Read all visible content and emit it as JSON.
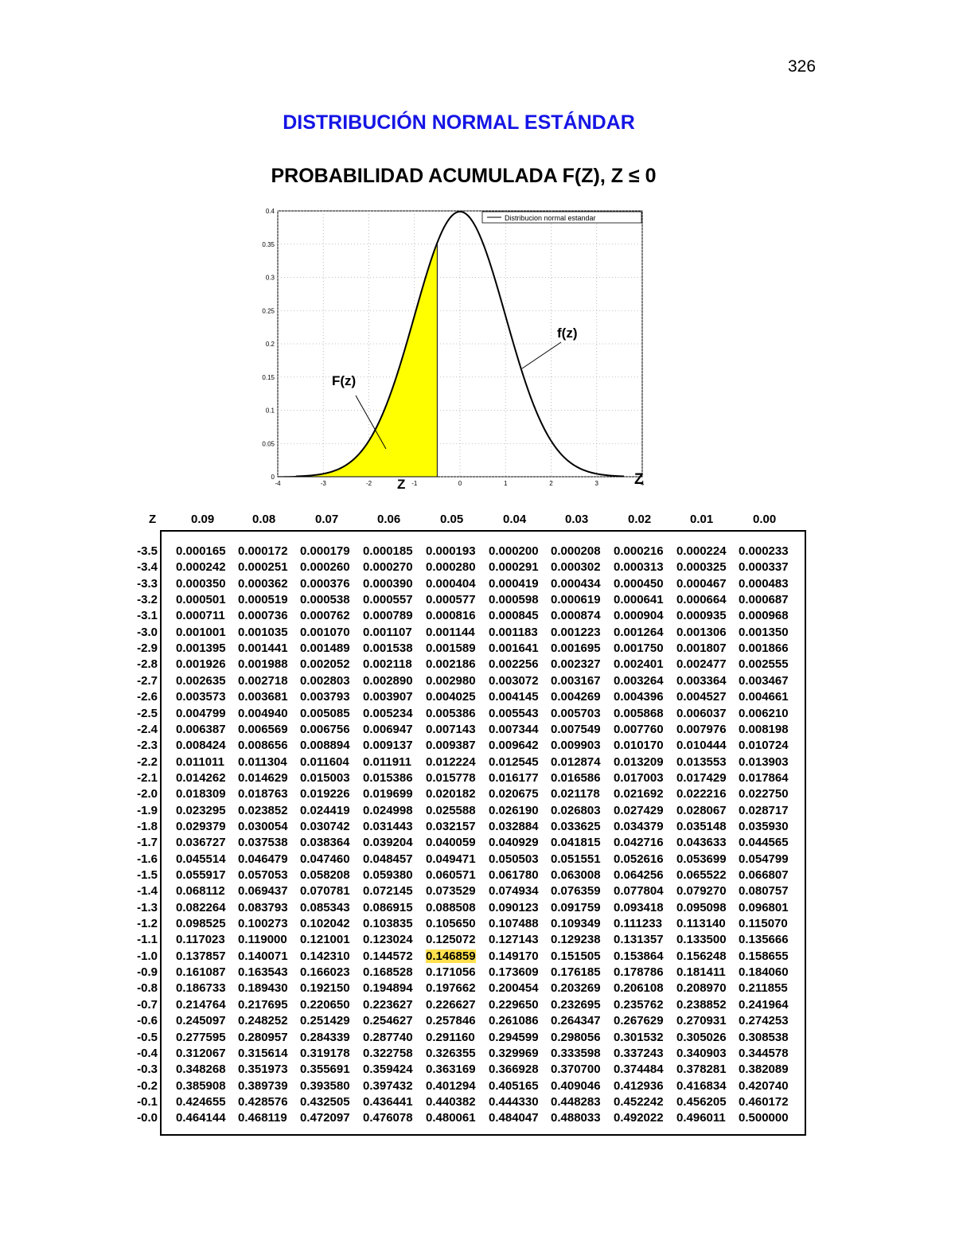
{
  "page_number": "326",
  "title": "DISTRIBUCIÓN NORMAL ESTÁNDAR",
  "subtitle": "PROBABILIDAD ACUMULADA  F(Z), Z ≤ 0",
  "figure": {
    "legend": "Distribucion normal estandar",
    "label_Fz": "F(z)",
    "label_fz": "f(z)",
    "label_z_small": "Z",
    "label_z_axis": "Z",
    "shade_color": "#ffff00",
    "chart_data": {
      "type": "line",
      "xlim": [
        -4,
        4
      ],
      "ylim": [
        0,
        0.4
      ],
      "xticks": [
        "-4",
        "-3",
        "-2",
        "-1",
        "0",
        "1",
        "2",
        "3",
        "4"
      ],
      "yticks": [
        "0",
        "0.05",
        "0.1",
        "0.15",
        "0.2",
        "0.25",
        "0.3",
        "0.35",
        "0.4"
      ],
      "grid": true,
      "legend_position": "top-right",
      "series": [
        {
          "name": "Distribucion normal estandar",
          "function": "standard normal pdf"
        }
      ],
      "shaded_region": {
        "from": -4,
        "to": -0.5
      }
    }
  },
  "table": {
    "z_header": "Z",
    "columns": [
      "0.09",
      "0.08",
      "0.07",
      "0.06",
      "0.05",
      "0.04",
      "0.03",
      "0.02",
      "0.01",
      "0.00"
    ],
    "highlight": {
      "row": 25,
      "col": 4,
      "color": "#ffe14d"
    },
    "rows": [
      {
        "z": "-3.5",
        "v": [
          "0.000165",
          "0.000172",
          "0.000179",
          "0.000185",
          "0.000193",
          "0.000200",
          "0.000208",
          "0.000216",
          "0.000224",
          "0.000233"
        ]
      },
      {
        "z": "-3.4",
        "v": [
          "0.000242",
          "0.000251",
          "0.000260",
          "0.000270",
          "0.000280",
          "0.000291",
          "0.000302",
          "0.000313",
          "0.000325",
          "0.000337"
        ]
      },
      {
        "z": "-3.3",
        "v": [
          "0.000350",
          "0.000362",
          "0.000376",
          "0.000390",
          "0.000404",
          "0.000419",
          "0.000434",
          "0.000450",
          "0.000467",
          "0.000483"
        ]
      },
      {
        "z": "-3.2",
        "v": [
          "0.000501",
          "0.000519",
          "0.000538",
          "0.000557",
          "0.000577",
          "0.000598",
          "0.000619",
          "0.000641",
          "0.000664",
          "0.000687"
        ]
      },
      {
        "z": "-3.1",
        "v": [
          "0.000711",
          "0.000736",
          "0.000762",
          "0.000789",
          "0.000816",
          "0.000845",
          "0.000874",
          "0.000904",
          "0.000935",
          "0.000968"
        ]
      },
      {
        "z": "-3.0",
        "v": [
          "0.001001",
          "0.001035",
          "0.001070",
          "0.001107",
          "0.001144",
          "0.001183",
          "0.001223",
          "0.001264",
          "0.001306",
          "0.001350"
        ]
      },
      {
        "z": "-2.9",
        "v": [
          "0.001395",
          "0.001441",
          "0.001489",
          "0.001538",
          "0.001589",
          "0.001641",
          "0.001695",
          "0.001750",
          "0.001807",
          "0.001866"
        ]
      },
      {
        "z": "-2.8",
        "v": [
          "0.001926",
          "0.001988",
          "0.002052",
          "0.002118",
          "0.002186",
          "0.002256",
          "0.002327",
          "0.002401",
          "0.002477",
          "0.002555"
        ]
      },
      {
        "z": "-2.7",
        "v": [
          "0.002635",
          "0.002718",
          "0.002803",
          "0.002890",
          "0.002980",
          "0.003072",
          "0.003167",
          "0.003264",
          "0.003364",
          "0.003467"
        ]
      },
      {
        "z": "-2.6",
        "v": [
          "0.003573",
          "0.003681",
          "0.003793",
          "0.003907",
          "0.004025",
          "0.004145",
          "0.004269",
          "0.004396",
          "0.004527",
          "0.004661"
        ]
      },
      {
        "z": "-2.5",
        "v": [
          "0.004799",
          "0.004940",
          "0.005085",
          "0.005234",
          "0.005386",
          "0.005543",
          "0.005703",
          "0.005868",
          "0.006037",
          "0.006210"
        ]
      },
      {
        "z": "-2.4",
        "v": [
          "0.006387",
          "0.006569",
          "0.006756",
          "0.006947",
          "0.007143",
          "0.007344",
          "0.007549",
          "0.007760",
          "0.007976",
          "0.008198"
        ]
      },
      {
        "z": "-2.3",
        "v": [
          "0.008424",
          "0.008656",
          "0.008894",
          "0.009137",
          "0.009387",
          "0.009642",
          "0.009903",
          "0.010170",
          "0.010444",
          "0.010724"
        ]
      },
      {
        "z": "-2.2",
        "v": [
          "0.011011",
          "0.011304",
          "0.011604",
          "0.011911",
          "0.012224",
          "0.012545",
          "0.012874",
          "0.013209",
          "0.013553",
          "0.013903"
        ]
      },
      {
        "z": "-2.1",
        "v": [
          "0.014262",
          "0.014629",
          "0.015003",
          "0.015386",
          "0.015778",
          "0.016177",
          "0.016586",
          "0.017003",
          "0.017429",
          "0.017864"
        ]
      },
      {
        "z": "-2.0",
        "v": [
          "0.018309",
          "0.018763",
          "0.019226",
          "0.019699",
          "0.020182",
          "0.020675",
          "0.021178",
          "0.021692",
          "0.022216",
          "0.022750"
        ]
      },
      {
        "z": "-1.9",
        "v": [
          "0.023295",
          "0.023852",
          "0.024419",
          "0.024998",
          "0.025588",
          "0.026190",
          "0.026803",
          "0.027429",
          "0.028067",
          "0.028717"
        ]
      },
      {
        "z": "-1.8",
        "v": [
          "0.029379",
          "0.030054",
          "0.030742",
          "0.031443",
          "0.032157",
          "0.032884",
          "0.033625",
          "0.034379",
          "0.035148",
          "0.035930"
        ]
      },
      {
        "z": "-1.7",
        "v": [
          "0.036727",
          "0.037538",
          "0.038364",
          "0.039204",
          "0.040059",
          "0.040929",
          "0.041815",
          "0.042716",
          "0.043633",
          "0.044565"
        ]
      },
      {
        "z": "-1.6",
        "v": [
          "0.045514",
          "0.046479",
          "0.047460",
          "0.048457",
          "0.049471",
          "0.050503",
          "0.051551",
          "0.052616",
          "0.053699",
          "0.054799"
        ]
      },
      {
        "z": "-1.5",
        "v": [
          "0.055917",
          "0.057053",
          "0.058208",
          "0.059380",
          "0.060571",
          "0.061780",
          "0.063008",
          "0.064256",
          "0.065522",
          "0.066807"
        ]
      },
      {
        "z": "-1.4",
        "v": [
          "0.068112",
          "0.069437",
          "0.070781",
          "0.072145",
          "0.073529",
          "0.074934",
          "0.076359",
          "0.077804",
          "0.079270",
          "0.080757"
        ]
      },
      {
        "z": "-1.3",
        "v": [
          "0.082264",
          "0.083793",
          "0.085343",
          "0.086915",
          "0.088508",
          "0.090123",
          "0.091759",
          "0.093418",
          "0.095098",
          "0.096801"
        ]
      },
      {
        "z": "-1.2",
        "v": [
          "0.098525",
          "0.100273",
          "0.102042",
          "0.103835",
          "0.105650",
          "0.107488",
          "0.109349",
          "0.111233",
          "0.113140",
          "0.115070"
        ]
      },
      {
        "z": "-1.1",
        "v": [
          "0.117023",
          "0.119000",
          "0.121001",
          "0.123024",
          "0.125072",
          "0.127143",
          "0.129238",
          "0.131357",
          "0.133500",
          "0.135666"
        ]
      },
      {
        "z": "-1.0",
        "v": [
          "0.137857",
          "0.140071",
          "0.142310",
          "0.144572",
          "0.146859",
          "0.149170",
          "0.151505",
          "0.153864",
          "0.156248",
          "0.158655"
        ]
      },
      {
        "z": "-0.9",
        "v": [
          "0.161087",
          "0.163543",
          "0.166023",
          "0.168528",
          "0.171056",
          "0.173609",
          "0.176185",
          "0.178786",
          "0.181411",
          "0.184060"
        ]
      },
      {
        "z": "-0.8",
        "v": [
          "0.186733",
          "0.189430",
          "0.192150",
          "0.194894",
          "0.197662",
          "0.200454",
          "0.203269",
          "0.206108",
          "0.208970",
          "0.211855"
        ]
      },
      {
        "z": "-0.7",
        "v": [
          "0.214764",
          "0.217695",
          "0.220650",
          "0.223627",
          "0.226627",
          "0.229650",
          "0.232695",
          "0.235762",
          "0.238852",
          "0.241964"
        ]
      },
      {
        "z": "-0.6",
        "v": [
          "0.245097",
          "0.248252",
          "0.251429",
          "0.254627",
          "0.257846",
          "0.261086",
          "0.264347",
          "0.267629",
          "0.270931",
          "0.274253"
        ]
      },
      {
        "z": "-0.5",
        "v": [
          "0.277595",
          "0.280957",
          "0.284339",
          "0.287740",
          "0.291160",
          "0.294599",
          "0.298056",
          "0.301532",
          "0.305026",
          "0.308538"
        ]
      },
      {
        "z": "-0.4",
        "v": [
          "0.312067",
          "0.315614",
          "0.319178",
          "0.322758",
          "0.326355",
          "0.329969",
          "0.333598",
          "0.337243",
          "0.340903",
          "0.344578"
        ]
      },
      {
        "z": "-0.3",
        "v": [
          "0.348268",
          "0.351973",
          "0.355691",
          "0.359424",
          "0.363169",
          "0.366928",
          "0.370700",
          "0.374484",
          "0.378281",
          "0.382089"
        ]
      },
      {
        "z": "-0.2",
        "v": [
          "0.385908",
          "0.389739",
          "0.393580",
          "0.397432",
          "0.401294",
          "0.405165",
          "0.409046",
          "0.412936",
          "0.416834",
          "0.420740"
        ]
      },
      {
        "z": "-0.1",
        "v": [
          "0.424655",
          "0.428576",
          "0.432505",
          "0.436441",
          "0.440382",
          "0.444330",
          "0.448283",
          "0.452242",
          "0.456205",
          "0.460172"
        ]
      },
      {
        "z": "-0.0",
        "v": [
          "0.464144",
          "0.468119",
          "0.472097",
          "0.476078",
          "0.480061",
          "0.484047",
          "0.488033",
          "0.492022",
          "0.496011",
          "0.500000"
        ]
      }
    ]
  }
}
